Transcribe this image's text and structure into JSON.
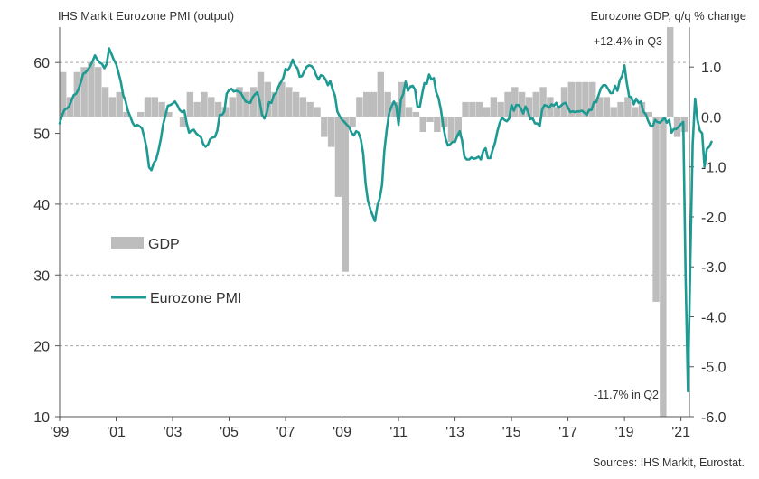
{
  "left_title": "IHS Markit Eurozone PMI (output)",
  "right_title": "Eurozone GDP, q/q % change",
  "source": "Sources: IHS Markit, Eurostat.",
  "legend": {
    "gdp": "GDP",
    "pmi": "Eurozone PMI"
  },
  "annotations": {
    "q3": "+12.4% in Q3",
    "q2": "-11.7% in Q2"
  },
  "chart_data": {
    "type": "bar+line",
    "x_range": [
      1999.0,
      2021.3
    ],
    "x_ticks": [
      {
        "label": "'99",
        "x": 1999
      },
      {
        "label": "'01",
        "x": 2001
      },
      {
        "label": "'03",
        "x": 2003
      },
      {
        "label": "'05",
        "x": 2005
      },
      {
        "label": "'07",
        "x": 2007
      },
      {
        "label": "'09",
        "x": 2009
      },
      {
        "label": "'11",
        "x": 2011
      },
      {
        "label": "'13",
        "x": 2013
      },
      {
        "label": "'15",
        "x": 2015
      },
      {
        "label": "'17",
        "x": 2017
      },
      {
        "label": "'19",
        "x": 2019
      },
      {
        "label": "'21",
        "x": 2021
      }
    ],
    "left_axis": {
      "range": [
        10,
        65
      ],
      "ticks": [
        10,
        20,
        30,
        40,
        50,
        60
      ],
      "gridlines": [
        20,
        30,
        40,
        60
      ]
    },
    "right_axis": {
      "range": [
        -6.0,
        1.8
      ],
      "ticks": [
        {
          "value": 1.0,
          "label": "1.0"
        },
        {
          "value": 0.0,
          "label": "0.0"
        },
        {
          "value": -1.0,
          "label": "-1.0"
        },
        {
          "value": -2.0,
          "label": "-2.0"
        },
        {
          "value": -3.0,
          "label": "-3.0"
        },
        {
          "value": -4.0,
          "label": "-4.0"
        },
        {
          "value": -5.0,
          "label": "-5.0"
        },
        {
          "value": -6.0,
          "label": "-6.0"
        }
      ]
    },
    "gdp_quarterly": {
      "start": 1999.0,
      "step": 0.25,
      "clip_note": "bars beyond the axis range are clipped at the axis edge",
      "values": [
        0.9,
        0.4,
        0.9,
        1.0,
        1.1,
        1.0,
        0.6,
        0.4,
        0.5,
        0.1,
        0.0,
        0.1,
        0.4,
        0.4,
        0.3,
        0.1,
        0.0,
        -0.2,
        0.5,
        0.3,
        0.5,
        0.4,
        0.3,
        0.2,
        0.4,
        0.6,
        0.5,
        0.6,
        0.9,
        0.7,
        0.5,
        0.7,
        0.6,
        0.5,
        0.4,
        0.3,
        0.2,
        -0.4,
        -0.6,
        -1.6,
        -3.1,
        -0.2,
        0.4,
        0.5,
        0.5,
        0.9,
        0.5,
        0.3,
        0.7,
        0.2,
        0.1,
        -0.3,
        -0.1,
        -0.3,
        -0.2,
        -0.5,
        -0.4,
        0.3,
        0.3,
        0.3,
        0.2,
        0.4,
        0.3,
        0.5,
        0.6,
        0.5,
        0.4,
        0.5,
        0.6,
        0.4,
        0.2,
        0.6,
        0.7,
        0.7,
        0.7,
        0.7,
        0.4,
        0.4,
        0.2,
        0.3,
        0.4,
        0.2,
        0.3,
        0.1,
        -3.7,
        -11.7,
        12.4,
        -0.4,
        -0.3
      ]
    },
    "pmi_monthly": {
      "start": 1999.0,
      "step": 0.0833333,
      "values": [
        51.4,
        52.5,
        53.3,
        53.5,
        53.8,
        54.6,
        55.4,
        55.6,
        56.2,
        57.2,
        58.4,
        58.6,
        59.0,
        59.5,
        60.2,
        61.0,
        60.4,
        60.0,
        59.8,
        59.2,
        59.8,
        62.0,
        61.2,
        60.4,
        59.8,
        58.6,
        57.3,
        55.4,
        54.6,
        53.2,
        52.4,
        51.5,
        51.0,
        51.2,
        51.0,
        50.7,
        49.4,
        47.8,
        45.2,
        44.8,
        45.8,
        46.3,
        47.6,
        49.2,
        51.3,
        52.6,
        53.9,
        54.0,
        54.2,
        54.5,
        54.0,
        53.3,
        53.0,
        53.2,
        51.4,
        50.1,
        50.4,
        50.5,
        50.0,
        49.7,
        49.5,
        48.5,
        48.1,
        48.4,
        49.2,
        49.4,
        49.5,
        50.4,
        52.6,
        52.6,
        53.1,
        55.6,
        56.1,
        56.3,
        55.9,
        56.0,
        55.9,
        55.7,
        55.1,
        54.5,
        54.4,
        54.3,
        55.1,
        55.5,
        55.8,
        54.5,
        52.6,
        52.1,
        52.9,
        54.4,
        54.3,
        55.4,
        55.7,
        56.6,
        57.2,
        57.8,
        59.1,
        58.9,
        59.5,
        60.4,
        59.6,
        59.2,
        58.0,
        58.1,
        58.8,
        59.4,
        59.6,
        59.5,
        59.1,
        58.2,
        57.6,
        58.2,
        58.1,
        57.6,
        56.8,
        57.4,
        56.2,
        55.3,
        53.1,
        52.4,
        51.9,
        51.6,
        51.2,
        50.9,
        50.1,
        49.7,
        50.3,
        50.1,
        49.1,
        47.1,
        42.9,
        40.5,
        39.3,
        38.4,
        37.6,
        39.7,
        40.8,
        42.7,
        47.6,
        50.5,
        52.8,
        53.8,
        54.5,
        53.9,
        51.2,
        54.8,
        55.6,
        57.3,
        56.0,
        56.6,
        56.7,
        56.2,
        53.8,
        53.7,
        55.5,
        57.1,
        57.0,
        58.3,
        57.6,
        57.8,
        55.8,
        55.0,
        53.3,
        51.0,
        49.2,
        48.3,
        48.5,
        48.8,
        48.8,
        49.7,
        50.3,
        49.0,
        46.7,
        46.3,
        46.3,
        46.6,
        46.4,
        46.5,
        46.7,
        46.3,
        47.5,
        47.9,
        46.5,
        46.5,
        47.7,
        48.7,
        50.3,
        51.5,
        52.2,
        51.9,
        51.7,
        52.1,
        54.0,
        53.2,
        54.0,
        54.0,
        53.5,
        52.8,
        53.8,
        53.1,
        52.0,
        52.1,
        51.4,
        51.4,
        51.0,
        53.3,
        54.0,
        53.9,
        53.6,
        54.1,
        53.9,
        54.3,
        53.6,
        53.9,
        54.2,
        54.3,
        53.6,
        53.0,
        53.1,
        53.0,
        53.1,
        53.1,
        53.2,
        52.9,
        52.6,
        53.3,
        53.3,
        54.4,
        54.4,
        55.4,
        56.4,
        56.8,
        56.8,
        56.3,
        55.7,
        55.7,
        56.7,
        56.0,
        57.5,
        58.1,
        59.6,
        57.1,
        55.2,
        55.1,
        54.1,
        54.9,
        54.3,
        54.5,
        53.1,
        52.7,
        51.8,
        51.1,
        51.0,
        51.9,
        51.6,
        51.5,
        51.8,
        52.2,
        51.5,
        51.9,
        50.1,
        50.6,
        50.6,
        50.9,
        51.3,
        51.6,
        29.7,
        13.6,
        31.9,
        48.5,
        54.9,
        51.9,
        50.4,
        50.0,
        45.3,
        47.8,
        48.1,
        48.8
      ]
    }
  },
  "colors": {
    "bar": "#bdbdbd",
    "line": "#1e9a93",
    "grid": "#a8a8a8",
    "axis": "#555555",
    "text": "#333333"
  }
}
